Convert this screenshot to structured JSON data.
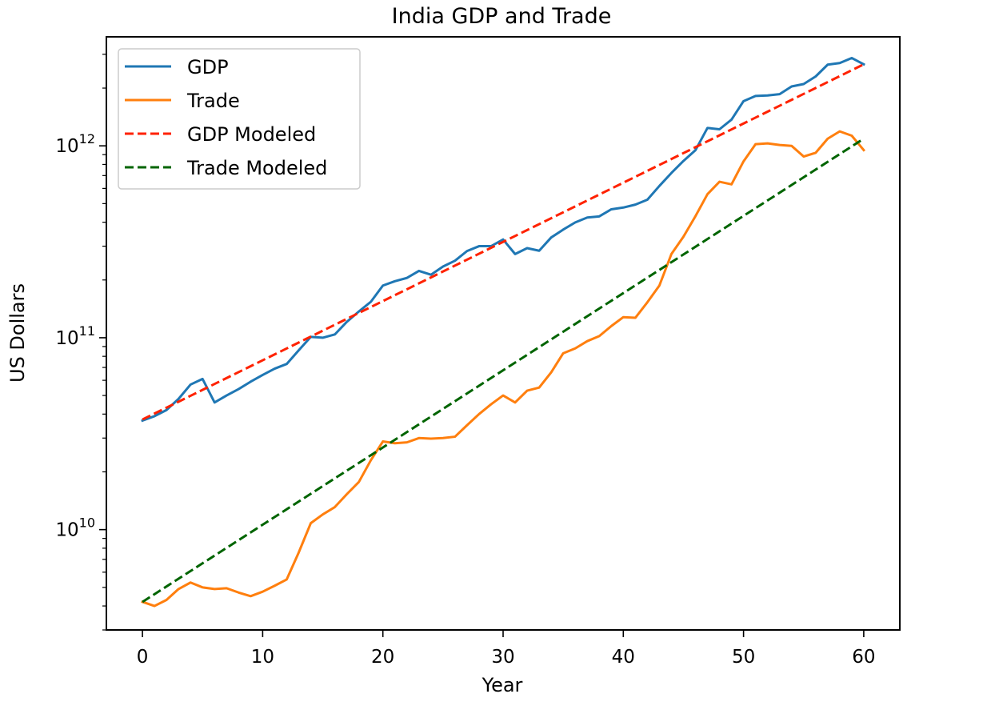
{
  "chart_data": {
    "type": "line",
    "title": "India GDP and Trade",
    "xlabel": "Year",
    "ylabel": "US Dollars",
    "yscale": "log",
    "xlim": [
      -3,
      63
    ],
    "ylim": [
      3000000000.0,
      3700000000000.0
    ],
    "x_ticks": [
      0,
      10,
      20,
      30,
      40,
      50,
      60
    ],
    "y_major_ticks": [
      {
        "value": 10000000000.0,
        "base": "10",
        "exp": "10"
      },
      {
        "value": 100000000000.0,
        "base": "10",
        "exp": "11"
      },
      {
        "value": 1000000000000.0,
        "base": "10",
        "exp": "12"
      }
    ],
    "grid": false,
    "legend_position": "top-left",
    "series": [
      {
        "name": "GDP",
        "color": "#1f77b4",
        "style": "solid",
        "x": [
          0,
          1,
          2,
          3,
          4,
          5,
          6,
          7,
          8,
          9,
          10,
          11,
          12,
          13,
          14,
          15,
          16,
          17,
          18,
          19,
          20,
          21,
          22,
          23,
          24,
          25,
          26,
          27,
          28,
          29,
          30,
          31,
          32,
          33,
          34,
          35,
          36,
          37,
          38,
          39,
          40,
          41,
          42,
          43,
          44,
          45,
          46,
          47,
          48,
          49,
          50,
          51,
          52,
          53,
          54,
          55,
          56,
          57,
          58,
          59,
          60
        ],
        "values": [
          37000000000.0,
          39000000000.0,
          42000000000.0,
          48000000000.0,
          57000000000.0,
          61000000000.0,
          46000000000.0,
          50000000000.0,
          54000000000.0,
          59000000000.0,
          64000000000.0,
          69000000000.0,
          73000000000.0,
          86000000000.0,
          101000000000.0,
          100000000000.0,
          104000000000.0,
          121000000000.0,
          137000000000.0,
          154000000000.0,
          187000000000.0,
          197000000000.0,
          205000000000.0,
          223000000000.0,
          213000000000.0,
          235000000000.0,
          252000000000.0,
          283000000000.0,
          300000000000.0,
          300000000000.0,
          325000000000.0,
          273000000000.0,
          293000000000.0,
          284000000000.0,
          333000000000.0,
          366000000000.0,
          399000000000.0,
          423000000000.0,
          429000000000.0,
          467000000000.0,
          477000000000.0,
          494000000000.0,
          524000000000.0,
          618000000000.0,
          722000000000.0,
          834000000000.0,
          949000000000.0,
          1240000000000.0,
          1220000000000.0,
          1370000000000.0,
          1710000000000.0,
          1820000000000.0,
          1830000000000.0,
          1860000000000.0,
          2040000000000.0,
          2100000000000.0,
          2300000000000.0,
          2650000000000.0,
          2700000000000.0,
          2870000000000.0,
          2660000000000.0
        ]
      },
      {
        "name": "Trade",
        "color": "#ff7f0e",
        "style": "solid",
        "x": [
          0,
          1,
          2,
          3,
          4,
          5,
          6,
          7,
          8,
          9,
          10,
          11,
          12,
          13,
          14,
          15,
          16,
          17,
          18,
          19,
          20,
          21,
          22,
          23,
          24,
          25,
          26,
          27,
          28,
          29,
          30,
          31,
          32,
          33,
          34,
          35,
          36,
          37,
          38,
          39,
          40,
          41,
          42,
          43,
          44,
          45,
          46,
          47,
          48,
          49,
          50,
          51,
          52,
          53,
          54,
          55,
          56,
          57,
          58,
          59,
          60
        ],
        "values": [
          4200000000.0,
          4000000000.0,
          4300000000.0,
          4900000000.0,
          5300000000.0,
          5000000000.0,
          4900000000.0,
          4950000000.0,
          4700000000.0,
          4500000000.0,
          4750000000.0,
          5100000000.0,
          5500000000.0,
          7600000000.0,
          10800000000.0,
          12000000000.0,
          13100000000.0,
          15300000000.0,
          17700000000.0,
          23000000000.0,
          28800000000.0,
          28200000000.0,
          28500000000.0,
          30000000000.0,
          29800000000.0,
          30000000000.0,
          30500000000.0,
          35000000000.0,
          40000000000.0,
          45000000000.0,
          50000000000.0,
          46000000000.0,
          53000000000.0,
          55000000000.0,
          66000000000.0,
          83000000000.0,
          88000000000.0,
          96000000000.0,
          102000000000.0,
          115000000000.0,
          128000000000.0,
          127000000000.0,
          153000000000.0,
          187000000000.0,
          273000000000.0,
          336000000000.0,
          430000000000.0,
          560000000000.0,
          650000000000.0,
          630000000000.0,
          830000000000.0,
          1020000000000.0,
          1030000000000.0,
          1010000000000.0,
          1000000000000.0,
          880000000000.0,
          920000000000.0,
          1090000000000.0,
          1190000000000.0,
          1130000000000.0,
          950000000000.0
        ]
      },
      {
        "name": "GDP Modeled",
        "color": "#ff2200",
        "style": "dashed",
        "x": [
          0,
          60
        ],
        "values": [
          37500000000.0,
          2660000000000.0
        ]
      },
      {
        "name": "Trade Modeled",
        "color": "#006400",
        "style": "dashed",
        "x": [
          0,
          60
        ],
        "values": [
          4200000000.0,
          1090000000000.0
        ]
      }
    ]
  }
}
